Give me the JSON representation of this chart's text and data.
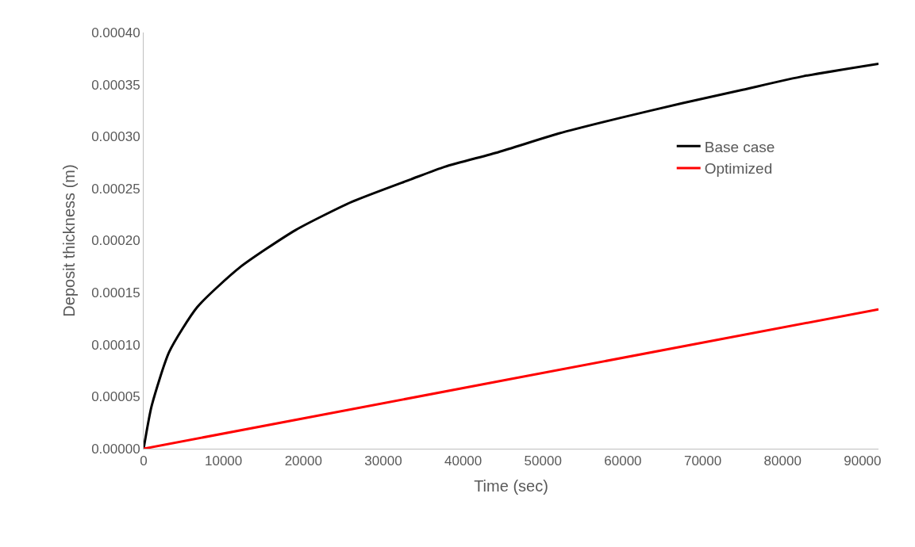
{
  "chart_data": {
    "type": "line",
    "xlabel": "Time (sec)",
    "ylabel": "Deposit thickness (m)",
    "xlim": [
      0,
      92000
    ],
    "xticks": [
      0,
      10000,
      20000,
      30000,
      40000,
      50000,
      60000,
      70000,
      80000,
      90000
    ],
    "ylim": [
      0,
      0.0004
    ],
    "yticks": [
      {
        "value": 0,
        "label": "0.00000"
      },
      {
        "value": 5e-05,
        "label": "0.00005"
      },
      {
        "value": 0.0001,
        "label": "0.00010"
      },
      {
        "value": 0.00015,
        "label": "0.00015"
      },
      {
        "value": 0.0002,
        "label": "0.00020"
      },
      {
        "value": 0.00025,
        "label": "0.00025"
      },
      {
        "value": 0.0003,
        "label": "0.00030"
      },
      {
        "value": 0.00035,
        "label": "0.00035"
      },
      {
        "value": 0.0004,
        "label": "0.00040"
      }
    ],
    "grid": false,
    "legend": "right",
    "marker": "none",
    "line_style": "solid",
    "series": [
      {
        "name": "Base case",
        "color": "#000000",
        "x": [
          0,
          1000,
          3200,
          6700,
          12000,
          19000,
          26000,
          33500,
          37700,
          44400,
          52000,
          59700,
          67400,
          75000,
          82600,
          92000
        ],
        "values": [
          0,
          4.1e-05,
          9.3e-05,
          0.000136,
          0.000174,
          0.00021,
          0.000237,
          0.000259,
          0.000271,
          0.000285,
          0.000303,
          0.000318,
          0.000332,
          0.000345,
          0.000358,
          0.00037
        ]
      },
      {
        "name": "Optimized",
        "color": "#ff0000",
        "x": [
          0,
          46000,
          92000
        ],
        "values": [
          0,
          6.7e-05,
          0.000134
        ]
      }
    ]
  }
}
